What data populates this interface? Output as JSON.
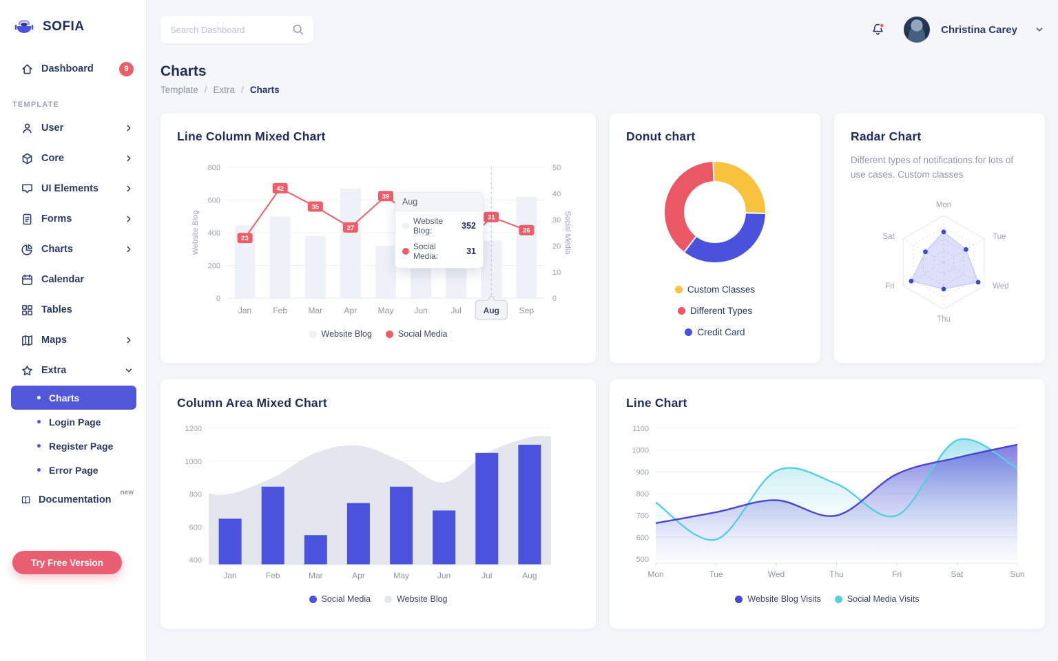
{
  "app": {
    "name": "SOFIA"
  },
  "topbar": {
    "search_placeholder": "Search Dashboard",
    "user_name": "Christina Carey"
  },
  "page": {
    "title": "Charts",
    "breadcrumb": [
      "Template",
      "Extra",
      "Charts"
    ]
  },
  "sidebar": {
    "dashboard": {
      "label": "Dashboard",
      "badge": "9"
    },
    "section_label": "TEMPLATE",
    "items": [
      {
        "label": "User",
        "icon": "user-icon",
        "has_submenu": true
      },
      {
        "label": "Core",
        "icon": "cube-icon",
        "has_submenu": true
      },
      {
        "label": "UI Elements",
        "icon": "inbox-icon",
        "has_submenu": true
      },
      {
        "label": "Forms",
        "icon": "file-icon",
        "has_submenu": true
      },
      {
        "label": "Charts",
        "icon": "pie-chart-icon",
        "has_submenu": true
      },
      {
        "label": "Calendar",
        "icon": "calendar-icon",
        "has_submenu": false
      },
      {
        "label": "Tables",
        "icon": "grid-icon",
        "has_submenu": false
      },
      {
        "label": "Maps",
        "icon": "map-icon",
        "has_submenu": true
      },
      {
        "label": "Extra",
        "icon": "star-icon",
        "has_submenu": true,
        "expanded": true
      }
    ],
    "extra_submenu": [
      {
        "label": "Charts",
        "active": true
      },
      {
        "label": "Login Page",
        "active": false
      },
      {
        "label": "Register Page",
        "active": false
      },
      {
        "label": "Error Page",
        "active": false
      }
    ],
    "documentation": {
      "label": "Documentation",
      "badge": "new"
    },
    "cta_label": "Try Free Version"
  },
  "theme": {
    "accent": "#4c52de",
    "red": "#ed5e68",
    "yellow": "#f8c33c",
    "cyan": "#56cfe1",
    "navy": "#233266",
    "bar_gray": "#eef1f7",
    "area_gray": "#e3e6ed"
  },
  "chart_data": [
    {
      "type": "mixed-column-line",
      "title": "Line Column Mixed Chart",
      "categories": [
        "Jan",
        "Feb",
        "Mar",
        "Apr",
        "May",
        "Jun",
        "Jul",
        "Aug",
        "Sep"
      ],
      "series": [
        {
          "name": "Website Blog",
          "render": "column",
          "axis": "left",
          "color": "#eef1f7",
          "values": [
            445,
            500,
            380,
            670,
            320,
            320,
            350,
            352,
            620
          ]
        },
        {
          "name": "Social Media",
          "render": "line",
          "axis": "right",
          "color": "#ed5e68",
          "values": [
            23,
            42,
            35,
            27,
            39,
            29,
            17,
            31,
            26
          ]
        }
      ],
      "left_axis": {
        "label": "Website Blog",
        "ticks": [
          0,
          200,
          400,
          600,
          800
        ],
        "max": 800
      },
      "right_axis": {
        "label": "Social Media",
        "ticks": [
          0,
          10,
          20,
          30,
          40,
          50
        ],
        "max": 50
      },
      "selected_category": "Aug",
      "tooltip": {
        "title": "Aug",
        "rows": [
          {
            "label": "Website Blog:",
            "value": "352",
            "color": "#eef1f7"
          },
          {
            "label": "Social Media:",
            "value": "31",
            "color": "#ed5e68"
          }
        ]
      }
    },
    {
      "type": "donut",
      "title": "Donut chart",
      "start_angle_deg": -2,
      "slices": [
        {
          "label": "Custom Classes",
          "value": 26,
          "color": "#f8c33c"
        },
        {
          "label": "Different Types",
          "value": 39,
          "color": "#ea5765"
        },
        {
          "label": "Credit Card",
          "value": 35,
          "color": "#4a51dd"
        }
      ],
      "visual_order": [
        "Custom Classes",
        "Credit Card",
        "Different Types"
      ]
    },
    {
      "type": "radar",
      "title": "Radar Chart",
      "description": "Different types of notifications for lots of use cases. Custom classes",
      "axes": [
        "Mon",
        "Tue",
        "Wed",
        "Thu",
        "Fri",
        "Sat"
      ],
      "values": [
        65,
        55,
        85,
        57,
        80,
        45
      ],
      "max": 100,
      "color": "#4a51dd"
    },
    {
      "type": "mixed-column-area",
      "title": "Column Area Mixed Chart",
      "categories": [
        "Jan",
        "Feb",
        "Mar",
        "Apr",
        "May",
        "Jun",
        "Jul",
        "Aug"
      ],
      "series": [
        {
          "name": "Social Media",
          "render": "column",
          "color": "#4b52de",
          "values": [
            650,
            845,
            550,
            745,
            845,
            700,
            1050,
            1100
          ]
        },
        {
          "name": "Website Blog",
          "render": "area",
          "color": "#e3e6ed",
          "values": [
            800,
            900,
            1050,
            1095,
            1000,
            870,
            1050,
            1145
          ]
        }
      ],
      "y_ticks": [
        400,
        600,
        800,
        1000,
        1200
      ],
      "ymin": 400,
      "ymax": 1200
    },
    {
      "type": "line-area",
      "title": "Line Chart",
      "categories": [
        "Mon",
        "Tue",
        "Wed",
        "Thu",
        "Fri",
        "Sat",
        "Sun"
      ],
      "series": [
        {
          "name": "Website Blog Visits",
          "color": "#4a46d2",
          "values": [
            665,
            715,
            770,
            700,
            890,
            965,
            1025
          ]
        },
        {
          "name": "Social Media Visits",
          "color": "#56cfe1",
          "values": [
            760,
            590,
            905,
            845,
            700,
            1045,
            915
          ]
        }
      ],
      "y_ticks": [
        500,
        600,
        700,
        800,
        900,
        1000,
        1100
      ],
      "ymin": 500,
      "ymax": 1100
    }
  ]
}
